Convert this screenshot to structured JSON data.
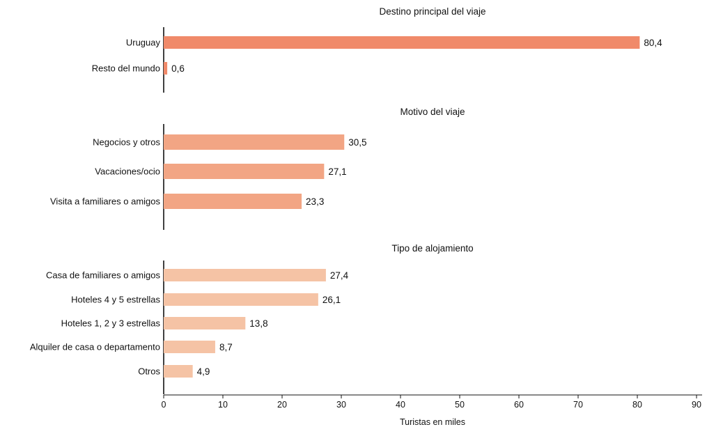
{
  "chart_data": {
    "type": "bar",
    "orientation": "horizontal",
    "xlabel": "Turistas en miles",
    "xlim": [
      0,
      90
    ],
    "xticks": [
      0,
      10,
      20,
      30,
      40,
      50,
      60,
      70,
      80,
      90
    ],
    "grid": false,
    "panels": [
      {
        "title": "Destino principal del viaje",
        "color": "#f08a6a",
        "categories": [
          "Uruguay",
          "Resto del mundo"
        ],
        "values": [
          80.4,
          0.6
        ],
        "value_labels": [
          "80,4",
          "0,6"
        ]
      },
      {
        "title": "Motivo del viaje",
        "color": "#f2a584",
        "categories": [
          "Negocios y otros",
          "Vacaciones/ocio",
          "Visita a familiares o amigos"
        ],
        "values": [
          30.5,
          27.1,
          23.3
        ],
        "value_labels": [
          "30,5",
          "27,1",
          "23,3"
        ]
      },
      {
        "title": "Tipo de alojamiento",
        "color": "#f5c3a5",
        "categories": [
          "Casa de familiares o amigos",
          "Hoteles 4 y 5 estrellas",
          "Hoteles 1, 2 y 3 estrellas",
          "Alquiler de casa o departamento",
          "Otros"
        ],
        "values": [
          27.4,
          26.1,
          13.8,
          8.7,
          4.9
        ],
        "value_labels": [
          "27,4",
          "26,1",
          "13,8",
          "8,7",
          "4,9"
        ]
      }
    ]
  }
}
